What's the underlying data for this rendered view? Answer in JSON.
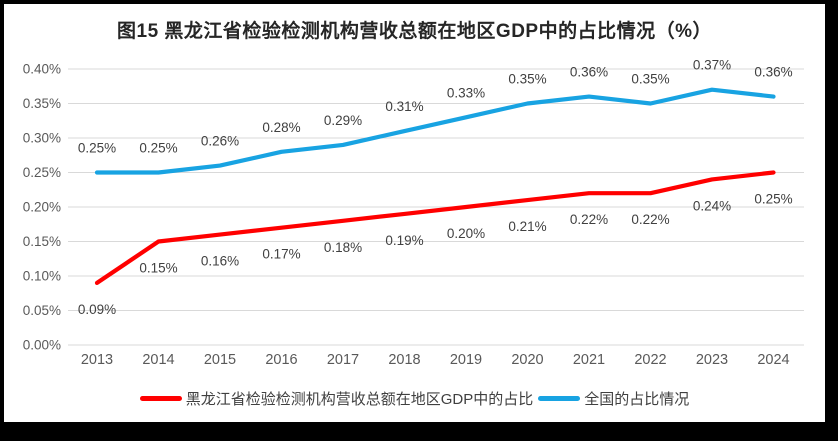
{
  "page": {
    "background": "#000000",
    "panel_background": "#ffffff"
  },
  "chart_data": {
    "type": "line",
    "title": "图15  黑龙江省检验检测机构营收总额在地区GDP中的占比情况（%）",
    "grid": true,
    "grid_color": "#D9D9D9",
    "legend_position": "bottom",
    "x": {
      "categories": [
        "2013",
        "2014",
        "2015",
        "2016",
        "2017",
        "2018",
        "2019",
        "2020",
        "2021",
        "2022",
        "2023",
        "2024"
      ]
    },
    "y_axis": {
      "min": 0,
      "max": 0.4,
      "unit": "%",
      "ticks": [
        {
          "value": 0.0,
          "label": "0.00%"
        },
        {
          "value": 0.05,
          "label": "0.05%"
        },
        {
          "value": 0.1,
          "label": "0.10%"
        },
        {
          "value": 0.15,
          "label": "0.15%"
        },
        {
          "value": 0.2,
          "label": "0.20%"
        },
        {
          "value": 0.25,
          "label": "0.25%"
        },
        {
          "value": 0.3,
          "label": "0.30%"
        },
        {
          "value": 0.35,
          "label": "0.35%"
        },
        {
          "value": 0.4,
          "label": "0.40%"
        }
      ]
    },
    "series": [
      {
        "name": "黑龙江省检验检测机构营收总额在地区GDP中的占比",
        "color": "#FF0000",
        "label_side": "below",
        "values": [
          0.09,
          0.15,
          0.16,
          0.17,
          0.18,
          0.19,
          0.2,
          0.21,
          0.22,
          0.22,
          0.24,
          0.25
        ],
        "labels": [
          "0.09%",
          "0.15%",
          "0.16%",
          "0.17%",
          "0.18%",
          "0.19%",
          "0.20%",
          "0.21%",
          "0.22%",
          "0.22%",
          "0.24%",
          "0.25%"
        ]
      },
      {
        "name": "全国的占比情况",
        "color": "#18A3E2",
        "label_side": "above",
        "values": [
          0.25,
          0.25,
          0.26,
          0.28,
          0.29,
          0.31,
          0.33,
          0.35,
          0.36,
          0.35,
          0.37,
          0.36
        ],
        "labels": [
          "0.25%",
          "0.25%",
          "0.26%",
          "0.28%",
          "0.29%",
          "0.31%",
          "0.33%",
          "0.35%",
          "0.36%",
          "0.35%",
          "0.37%",
          "0.36%"
        ]
      }
    ]
  }
}
